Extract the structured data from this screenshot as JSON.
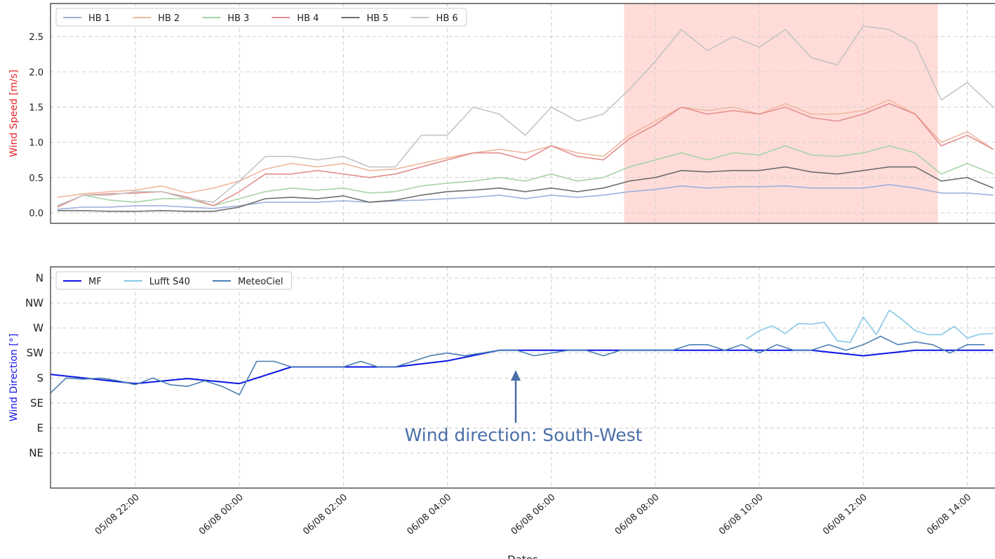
{
  "chart_data": [
    {
      "type": "line",
      "ylabel": "Wind Speed [m/s]",
      "x": [
        "05/08 20:30",
        "05/08 21:00",
        "05/08 21:30",
        "05/08 22:00",
        "05/08 22:30",
        "05/08 23:00",
        "05/08 23:30",
        "06/08 00:00",
        "06/08 00:30",
        "06/08 01:00",
        "06/08 01:30",
        "06/08 02:00",
        "06/08 02:30",
        "06/08 03:00",
        "06/08 03:30",
        "06/08 04:00",
        "06/08 04:30",
        "06/08 05:00",
        "06/08 05:30",
        "06/08 06:00",
        "06/08 06:30",
        "06/08 07:00",
        "06/08 07:30",
        "06/08 08:00",
        "06/08 08:30",
        "06/08 09:00",
        "06/08 09:30",
        "06/08 10:00",
        "06/08 10:30",
        "06/08 11:00",
        "06/08 11:30",
        "06/08 12:00",
        "06/08 12:30",
        "06/08 13:00",
        "06/08 13:30",
        "06/08 14:00",
        "06/08 14:30"
      ],
      "series": [
        {
          "name": "HB 1",
          "color": "#9fb0dc",
          "values": [
            0.05,
            0.08,
            0.08,
            0.1,
            0.1,
            0.08,
            0.06,
            0.1,
            0.15,
            0.15,
            0.15,
            0.17,
            0.15,
            0.17,
            0.18,
            0.2,
            0.22,
            0.25,
            0.2,
            0.25,
            0.22,
            0.25,
            0.3,
            0.33,
            0.38,
            0.35,
            0.37,
            0.37,
            0.38,
            0.35,
            0.35,
            0.35,
            0.4,
            0.35,
            0.28,
            0.28,
            0.25
          ]
        },
        {
          "name": "HB 2",
          "color": "#efb8a0",
          "values": [
            0.22,
            0.27,
            0.3,
            0.32,
            0.38,
            0.28,
            0.35,
            0.45,
            0.62,
            0.7,
            0.65,
            0.7,
            0.6,
            0.62,
            0.7,
            0.78,
            0.85,
            0.9,
            0.85,
            0.95,
            0.85,
            0.8,
            1.1,
            1.3,
            1.5,
            1.45,
            1.5,
            1.4,
            1.55,
            1.4,
            1.4,
            1.45,
            1.6,
            1.4,
            1.0,
            1.15,
            0.9
          ]
        },
        {
          "name": "HB 3",
          "color": "#a6d4a6",
          "values": [
            0.1,
            0.25,
            0.18,
            0.15,
            0.2,
            0.2,
            0.1,
            0.2,
            0.3,
            0.35,
            0.32,
            0.35,
            0.28,
            0.3,
            0.38,
            0.42,
            0.45,
            0.5,
            0.45,
            0.55,
            0.45,
            0.5,
            0.65,
            0.75,
            0.85,
            0.75,
            0.85,
            0.82,
            0.95,
            0.82,
            0.8,
            0.85,
            0.95,
            0.85,
            0.55,
            0.7,
            0.55
          ]
        },
        {
          "name": "HB 4",
          "color": "#e48e8e",
          "values": [
            0.08,
            0.25,
            0.27,
            0.28,
            0.3,
            0.22,
            0.1,
            0.3,
            0.55,
            0.55,
            0.6,
            0.55,
            0.5,
            0.55,
            0.65,
            0.75,
            0.85,
            0.85,
            0.75,
            0.95,
            0.8,
            0.75,
            1.05,
            1.25,
            1.5,
            1.4,
            1.45,
            1.4,
            1.5,
            1.35,
            1.3,
            1.4,
            1.55,
            1.4,
            0.95,
            1.1,
            0.9
          ]
        },
        {
          "name": "HB 5",
          "color": "#6e6e6e",
          "values": [
            0.03,
            0.03,
            0.02,
            0.02,
            0.03,
            0.02,
            0.02,
            0.08,
            0.2,
            0.22,
            0.2,
            0.24,
            0.15,
            0.18,
            0.25,
            0.3,
            0.32,
            0.35,
            0.3,
            0.35,
            0.3,
            0.35,
            0.45,
            0.5,
            0.6,
            0.58,
            0.6,
            0.6,
            0.65,
            0.58,
            0.55,
            0.6,
            0.65,
            0.65,
            0.45,
            0.5,
            0.35
          ]
        },
        {
          "name": "HB 6",
          "color": "#c4c4c4",
          "values": [
            0.1,
            0.25,
            0.25,
            0.3,
            0.3,
            0.2,
            0.15,
            0.45,
            0.8,
            0.8,
            0.75,
            0.8,
            0.65,
            0.65,
            1.1,
            1.1,
            1.5,
            1.4,
            1.1,
            1.5,
            1.3,
            1.4,
            1.75,
            2.15,
            2.6,
            2.3,
            2.5,
            2.35,
            2.6,
            2.2,
            2.1,
            2.65,
            2.6,
            2.4,
            1.6,
            1.85,
            1.5
          ]
        }
      ],
      "highlight": [
        "06/08 07:24",
        "06/08 13:26"
      ],
      "highlight_color": "#ffdcd8",
      "xlim": [
        "05/08 20:22",
        "06/08 14:32"
      ],
      "xticks": [
        "05/08 22:00",
        "06/08 00:00",
        "06/08 02:00",
        "06/08 04:00",
        "06/08 06:00",
        "06/08 08:00",
        "06/08 10:00",
        "06/08 12:00",
        "06/08 14:00"
      ],
      "ylim": [
        -0.15,
        2.97
      ],
      "yticks": [
        {
          "value": 0,
          "label": "0.0"
        },
        0.5,
        {
          "value": 1,
          "label": "1.0"
        },
        1.5,
        {
          "value": 2,
          "label": "2.0"
        },
        2.5
      ],
      "grid": true,
      "legend": "upper left"
    },
    {
      "type": "line",
      "ylabel": "Wind Direction [°]",
      "xlabel": "Dates",
      "annotation": "Wind direction: South-West",
      "series": [
        {
          "name": "MF",
          "color": "#0a14e6",
          "x": [
            "05/08 20:20",
            "05/08 22:00",
            "05/08 23:00",
            "06/08 00:00",
            "06/08 01:00",
            "06/08 03:00",
            "06/08 04:00",
            "06/08 05:00",
            "06/08 11:00",
            "06/08 12:00",
            "06/08 13:00",
            "06/08 14:30"
          ],
          "values": [
            187,
            170,
            179,
            170,
            200,
            200,
            211,
            230,
            230,
            220,
            230,
            230
          ]
        },
        {
          "name": "Lufft S40",
          "color": "#87c8e8",
          "x": [
            "06/08 09:45",
            "06/08 10:00",
            "06/08 10:15",
            "06/08 10:30",
            "06/08 10:45",
            "06/08 11:00",
            "06/08 11:15",
            "06/08 11:30",
            "06/08 11:45",
            "06/08 12:00",
            "06/08 12:15",
            "06/08 12:30",
            "06/08 12:45",
            "06/08 13:00",
            "06/08 13:15",
            "06/08 13:30",
            "06/08 13:45",
            "06/08 14:00",
            "06/08 14:15",
            "06/08 14:30"
          ],
          "values": [
            250,
            265,
            274,
            260,
            278,
            277,
            280,
            247,
            244,
            290,
            258,
            302,
            285,
            265,
            258,
            258,
            273,
            252,
            259,
            260
          ]
        },
        {
          "name": "MeteoCiel",
          "color": "#4a80b4",
          "x": [
            "05/08 20:20",
            "05/08 20:40",
            "05/08 21:00",
            "05/08 21:20",
            "05/08 21:40",
            "05/08 22:00",
            "05/08 22:20",
            "05/08 22:40",
            "05/08 23:00",
            "05/08 23:20",
            "05/08 23:40",
            "06/08 00:00",
            "06/08 00:20",
            "06/08 00:40",
            "06/08 01:00",
            "06/08 01:20",
            "06/08 01:40",
            "06/08 02:00",
            "06/08 02:20",
            "06/08 02:40",
            "06/08 03:00",
            "06/08 03:20",
            "06/08 03:40",
            "06/08 04:00",
            "06/08 04:20",
            "06/08 04:40",
            "06/08 05:00",
            "06/08 05:20",
            "06/08 05:40",
            "06/08 06:00",
            "06/08 06:20",
            "06/08 06:40",
            "06/08 07:00",
            "06/08 07:20",
            "06/08 07:40",
            "06/08 08:00",
            "06/08 08:20",
            "06/08 08:40",
            "06/08 09:00",
            "06/08 09:20",
            "06/08 09:40",
            "06/08 10:00",
            "06/08 10:20",
            "06/08 10:40",
            "06/08 11:00",
            "06/08 11:20",
            "06/08 11:40",
            "06/08 12:00",
            "06/08 12:20",
            "06/08 12:40",
            "06/08 13:00",
            "06/08 13:20",
            "06/08 13:40",
            "06/08 14:00",
            "06/08 14:20"
          ],
          "values": [
            150,
            180,
            178,
            180,
            175,
            168,
            180,
            168,
            165,
            175,
            165,
            150,
            210,
            210,
            200,
            200,
            200,
            200,
            210,
            200,
            200,
            210,
            220,
            225,
            220,
            225,
            230,
            230,
            220,
            225,
            230,
            230,
            220,
            230,
            230,
            230,
            230,
            240,
            240,
            230,
            240,
            225,
            240,
            230,
            230,
            240,
            230,
            240,
            255,
            240,
            245,
            240,
            225,
            240,
            240
          ]
        }
      ],
      "xlim": [
        "05/08 20:22",
        "06/08 14:32"
      ],
      "xticks": [
        "05/08 22:00",
        "06/08 00:00",
        "06/08 02:00",
        "06/08 04:00",
        "06/08 06:00",
        "06/08 08:00",
        "06/08 10:00",
        "06/08 12:00",
        "06/08 14:00"
      ],
      "ylim": [
        -18,
        380
      ],
      "yticks": [
        {
          "value": 360,
          "label": "N"
        },
        {
          "value": 315,
          "label": "NW"
        },
        {
          "value": 270,
          "label": "W"
        },
        {
          "value": 225,
          "label": "SW"
        },
        {
          "value": 180,
          "label": "S"
        },
        {
          "value": 135,
          "label": "SE"
        },
        {
          "value": 90,
          "label": "E"
        },
        {
          "value": 45,
          "label": "NE"
        }
      ],
      "grid": true,
      "legend": "upper left"
    }
  ]
}
